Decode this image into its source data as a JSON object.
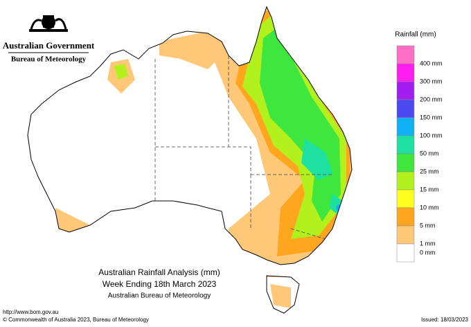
{
  "header": {
    "government": "Australian Government",
    "agency": "Bureau of Meteorology"
  },
  "legend": {
    "title": "Rainfall (mm)",
    "items": [
      {
        "label": "400 mm",
        "color": "#ff6fc6"
      },
      {
        "label": "300 mm",
        "color": "#ff1ef0"
      },
      {
        "label": "200 mm",
        "color": "#a21ef0"
      },
      {
        "label": "150 mm",
        "color": "#4a4af0"
      },
      {
        "label": "100 mm",
        "color": "#12b0f5"
      },
      {
        "label": "50 mm",
        "color": "#1ee0a0"
      },
      {
        "label": "25 mm",
        "color": "#3ee63e"
      },
      {
        "label": "15 mm",
        "color": "#b2f01e"
      },
      {
        "label": "10 mm",
        "color": "#ffff1e"
      },
      {
        "label": "5 mm",
        "color": "#ffa61e"
      },
      {
        "label": "1 mm",
        "color": "#ffc878"
      },
      {
        "label": "0 mm",
        "color": "#ffffff"
      }
    ]
  },
  "map": {
    "title": "Australian Rainfall Analysis (mm)",
    "subtitle": "Week Ending 18th March 2023",
    "source": "Australian Bureau of Meteorology"
  },
  "footer": {
    "url": "http://www.bom.gov.au",
    "copyright": "© Commonwealth of Australia 2023, Bureau of Meteorology",
    "issued": "Issued: 18/03/2023"
  }
}
